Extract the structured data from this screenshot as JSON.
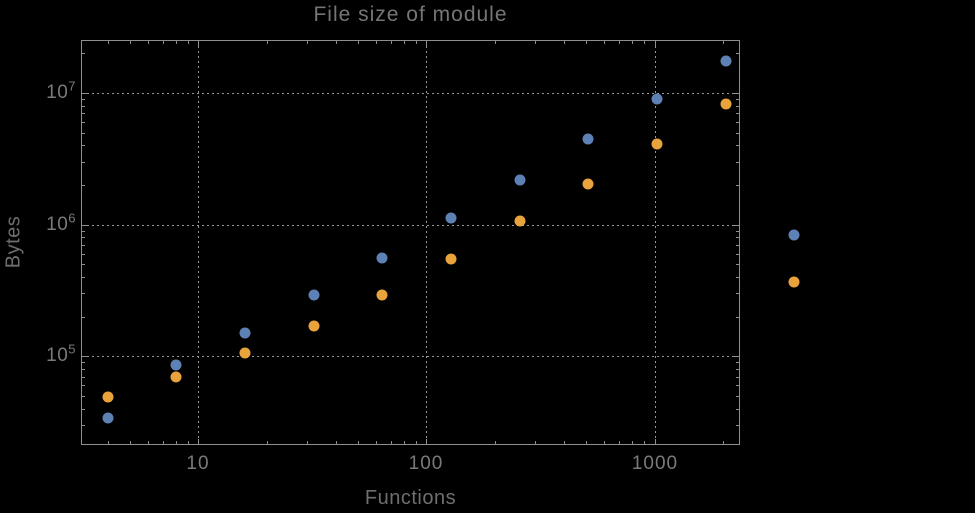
{
  "title": "File size of module",
  "axes": {
    "x_label": "Functions",
    "y_label": "Bytes",
    "x_tick_labels": [
      {
        "value": 10,
        "label": "10"
      },
      {
        "value": 100,
        "label": "100"
      },
      {
        "value": 1000,
        "label": "1000"
      }
    ],
    "y_tick_labels": [
      {
        "value": 100000,
        "base": "10",
        "exponent": "5"
      },
      {
        "value": 1000000,
        "base": "10",
        "exponent": "6"
      },
      {
        "value": 10000000,
        "base": "10",
        "exponent": "7"
      }
    ]
  },
  "chart_data": {
    "type": "scatter",
    "title": "File size of module",
    "xlabel": "Functions",
    "ylabel": "Bytes",
    "x_scale": "log",
    "y_scale": "log",
    "grid": "dotted",
    "legend": "none",
    "xlim": [
      3.06,
      2345
    ],
    "ylim": [
      21500,
      25280000
    ],
    "x_gridlines": [
      10,
      100,
      1000
    ],
    "y_gridlines": [
      100000,
      1000000,
      10000000
    ],
    "x": [
      4,
      8,
      16,
      32,
      64,
      128,
      256,
      512,
      1024,
      2048,
      4096
    ],
    "series": [
      {
        "name": "blue",
        "color": "#5E81B5",
        "values": [
          34000,
          86000,
          150000,
          290000,
          560000,
          1120000,
          2200000,
          4450000,
          9000000,
          17600000,
          830000
        ]
      },
      {
        "name": "orange",
        "color": "#E8A33D",
        "values": [
          49000,
          70000,
          105000,
          170000,
          290000,
          550000,
          1060000,
          2050000,
          4100000,
          8200000,
          365000
        ]
      }
    ]
  },
  "colors": {
    "background": "#000000",
    "frame": "#8e8e8e",
    "gridline": "#979797",
    "title_text": "#757575",
    "axis_label_text": "#6e6e6e",
    "tick_label_text": "#7a7a7a",
    "series_blue": "#5E81B5",
    "series_orange": "#E8A33D"
  }
}
